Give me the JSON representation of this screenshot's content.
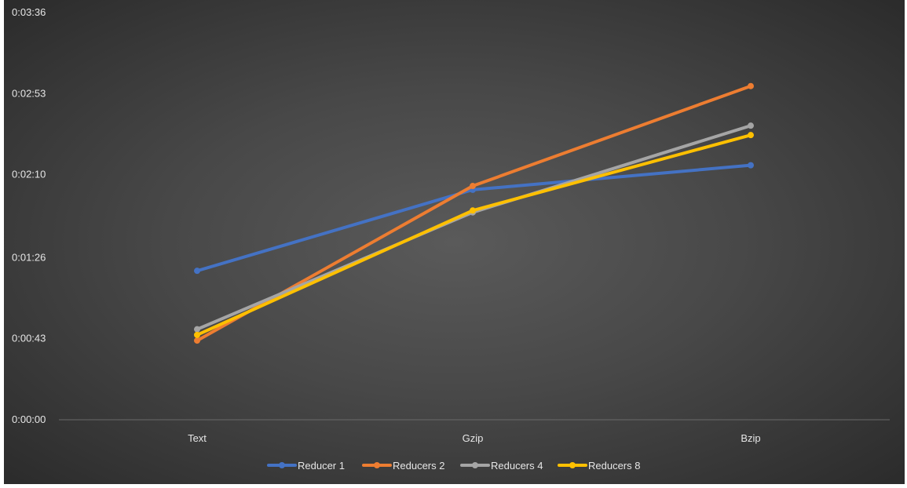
{
  "chart_data": {
    "type": "line",
    "title": "",
    "xlabel": "",
    "ylabel": "",
    "categories": [
      "Text",
      "Gzip",
      "Bzip"
    ],
    "y_unit": "seconds",
    "ylim": [
      0,
      216
    ],
    "y_ticks": [
      {
        "value": 0,
        "label": "0:00:00"
      },
      {
        "value": 43,
        "label": "0:00:43"
      },
      {
        "value": 86,
        "label": "0:01:26"
      },
      {
        "value": 130,
        "label": "0:02:10"
      },
      {
        "value": 173,
        "label": "0:02:53"
      },
      {
        "value": 216,
        "label": "0:03:36"
      }
    ],
    "series": [
      {
        "name": "Reducer 1",
        "color": "#4472C4",
        "values": [
          79,
          122,
          135
        ]
      },
      {
        "name": "Reducers 2",
        "color": "#ED7D31",
        "values": [
          42,
          124,
          177
        ]
      },
      {
        "name": "Reducers 4",
        "color": "#A5A5A5",
        "values": [
          48,
          110,
          156
        ]
      },
      {
        "name": "Reducers 8",
        "color": "#FFC000",
        "values": [
          45,
          111,
          151
        ]
      }
    ],
    "legend_position": "bottom",
    "grid": false
  }
}
